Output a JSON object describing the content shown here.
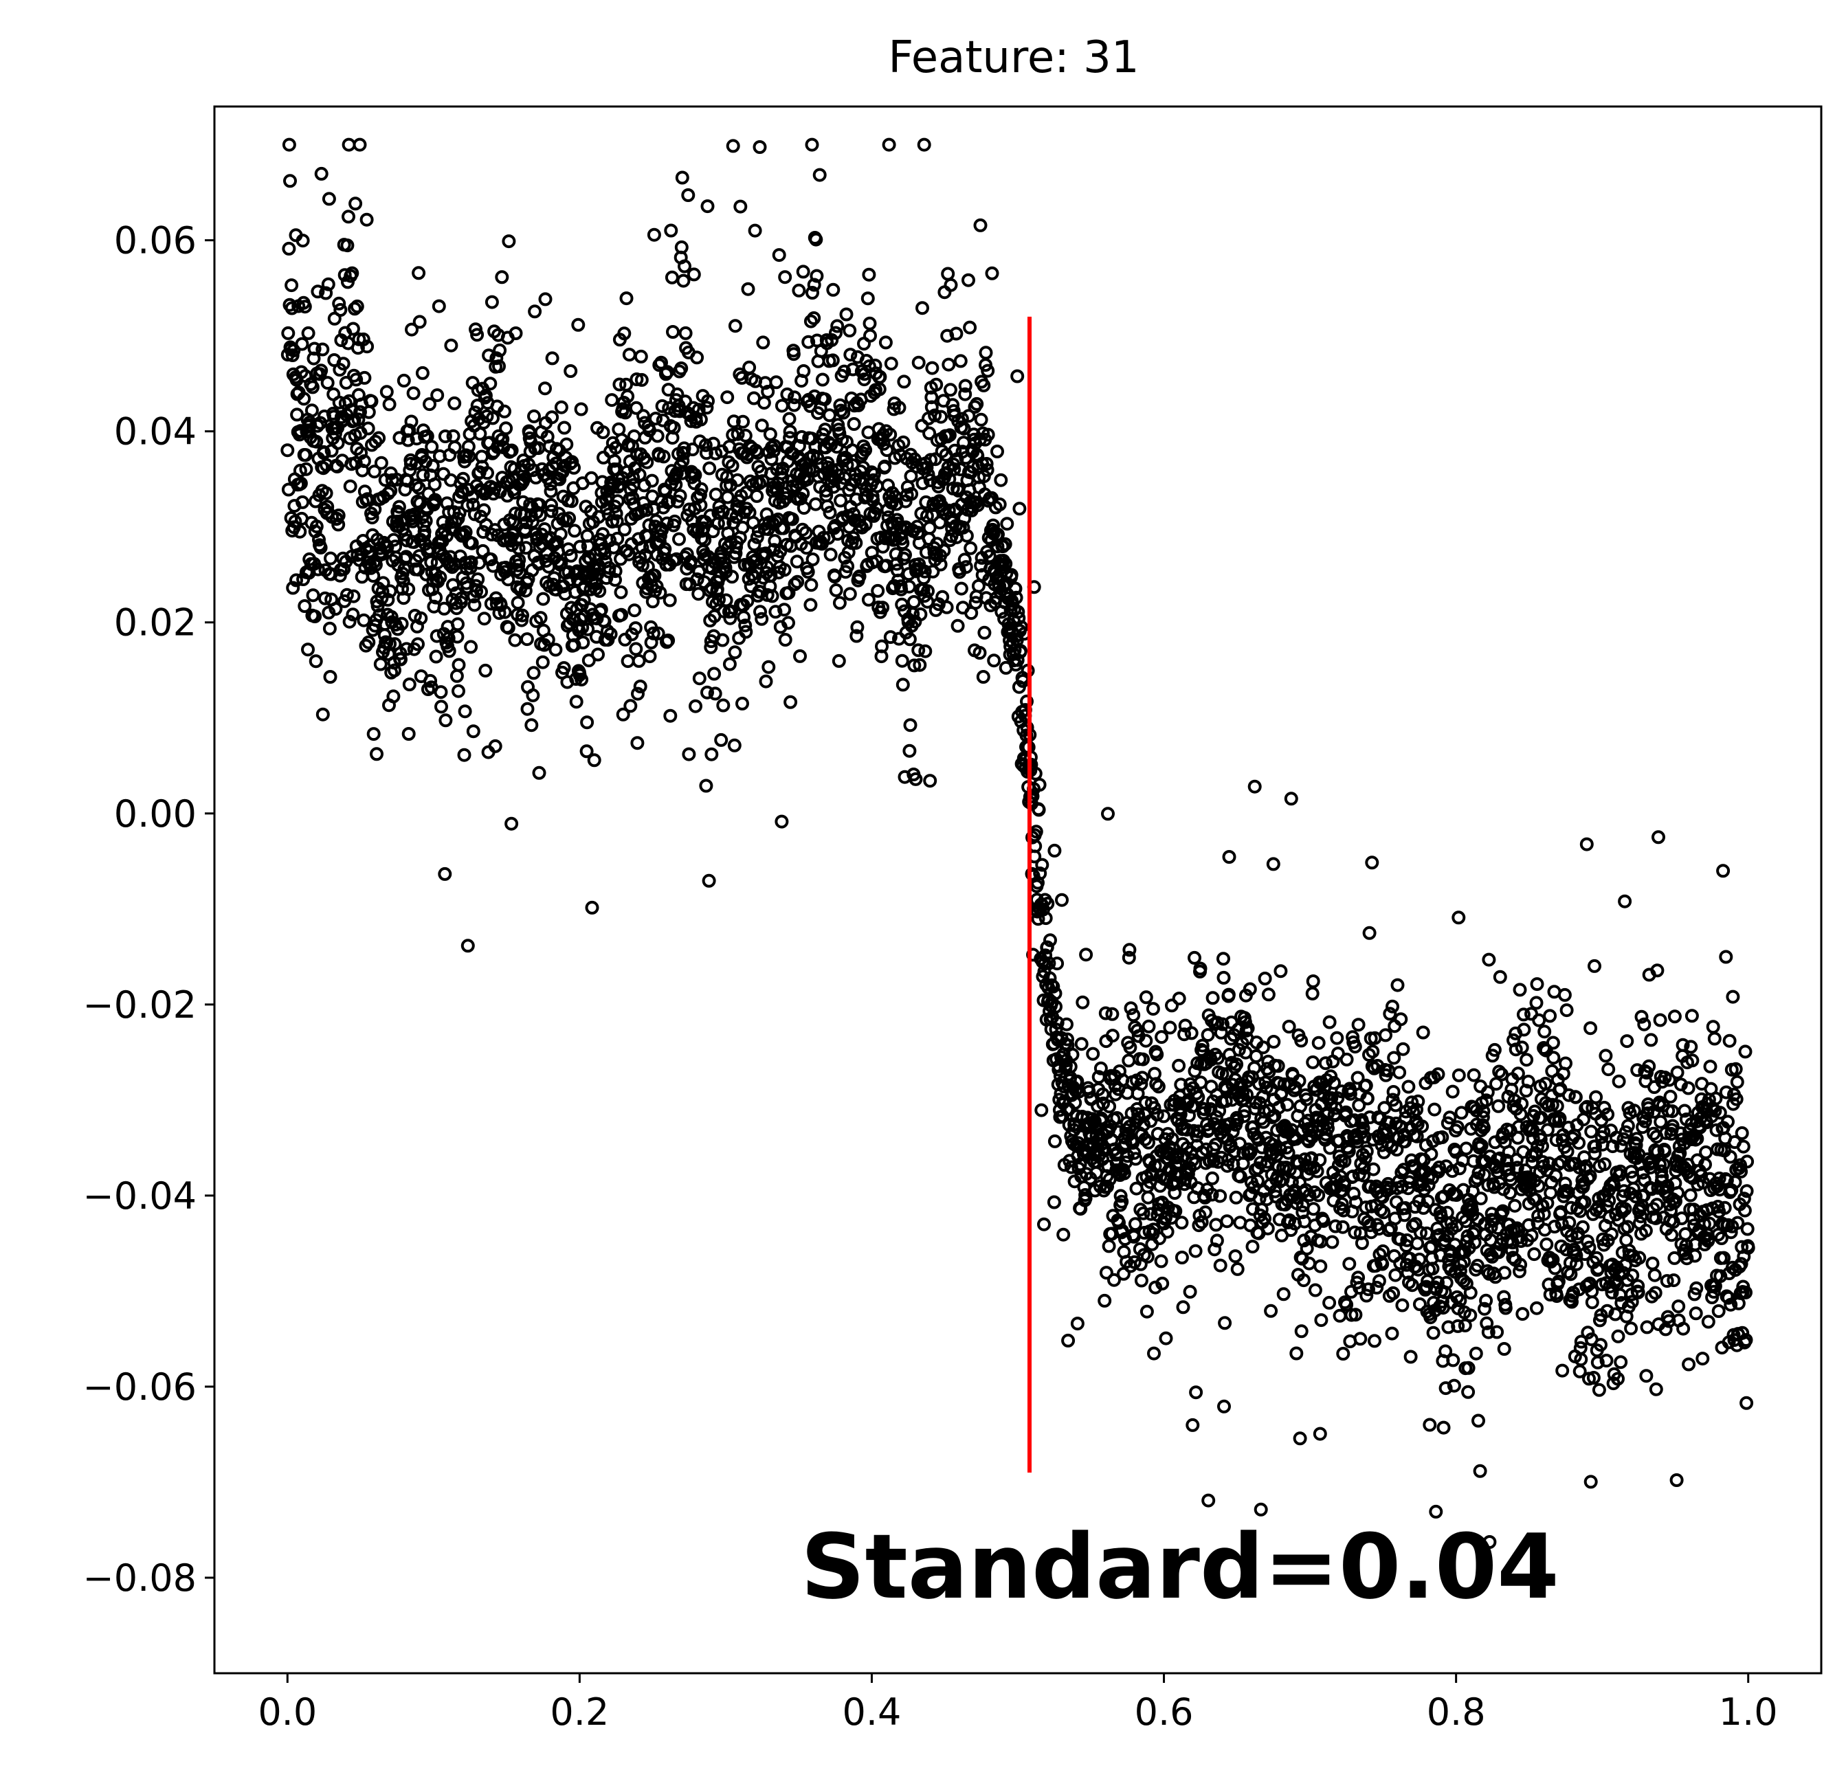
{
  "chart_data": {
    "type": "scatter",
    "title": "Feature: 31",
    "xlabel": "",
    "ylabel": "",
    "xlim": [
      -0.05,
      1.05
    ],
    "ylim": [
      -0.09,
      0.074
    ],
    "x_ticks": [
      0.0,
      0.2,
      0.4,
      0.6,
      0.8,
      1.0
    ],
    "x_tick_labels": [
      "0.0",
      "0.2",
      "0.4",
      "0.6",
      "0.8",
      "1.0"
    ],
    "y_ticks": [
      0.06,
      0.04,
      0.02,
      0.0,
      -0.02,
      -0.04,
      -0.06,
      -0.08
    ],
    "y_tick_labels": [
      "0.06",
      "0.04",
      "0.02",
      "0.00",
      "−0.02",
      "−0.04",
      "−0.06",
      "−0.08"
    ],
    "grid": false,
    "marker": "open-circle",
    "marker_color": "#000000",
    "series": [
      {
        "x_range": [
          0.0,
          1.0
        ],
        "regimes": [
          {
            "x_range": [
              0.0,
              0.05
            ],
            "y_mean": 0.034,
            "y_spread": 0.011,
            "y_min": 0.014,
            "y_max": 0.066
          },
          {
            "x_range": [
              0.05,
              0.3
            ],
            "y_mean": 0.03,
            "y_spread": 0.008,
            "y_min": 0.009,
            "y_max": 0.063
          },
          {
            "x_range": [
              0.3,
              0.48
            ],
            "y_mean": 0.034,
            "y_spread": 0.008,
            "y_min": 0.012,
            "y_max": 0.062
          },
          {
            "x_range": [
              0.48,
              0.56
            ],
            "y_mean": "transition from 0.03 to -0.035",
            "y_spread": 0.004
          },
          {
            "x_range": [
              0.56,
              0.72
            ],
            "y_mean": -0.034,
            "y_spread": 0.007,
            "y_min": -0.072,
            "y_max": -0.014
          },
          {
            "x_range": [
              0.72,
              1.0
            ],
            "y_mean": -0.04,
            "y_spread": 0.008,
            "y_min": -0.083,
            "y_max": -0.021
          }
        ],
        "approx_point_count": 4000
      }
    ],
    "reference_line": {
      "orientation": "vertical",
      "x": 0.508,
      "y_range": [
        -0.069,
        0.052
      ],
      "color": "#ff0000"
    },
    "annotation": "Standard=0.04"
  }
}
